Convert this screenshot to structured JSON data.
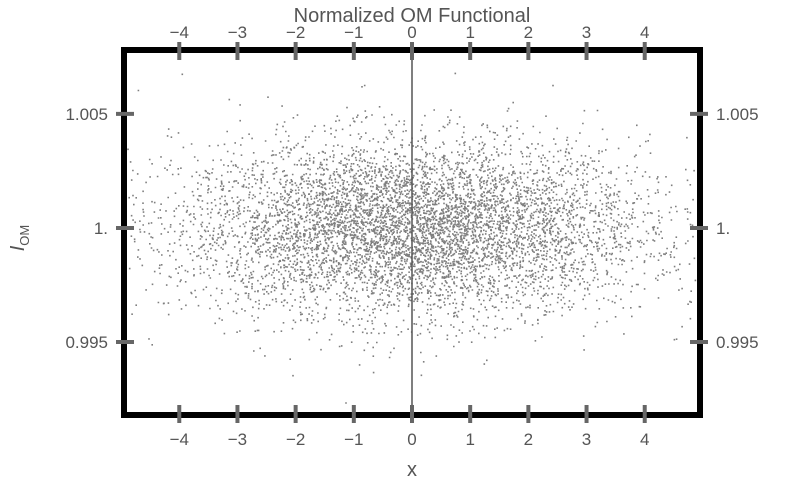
{
  "chart_data": {
    "type": "scatter",
    "title": "Normalized OM Functional",
    "xlabel": "x",
    "ylabel_main": "I",
    "ylabel_sub": "OM",
    "xlim": [
      -4.95,
      4.95
    ],
    "ylim": [
      0.9918,
      1.0078
    ],
    "x_ticks": [
      -4,
      -3,
      -2,
      -1,
      0,
      1,
      2,
      3,
      4
    ],
    "x_tick_labels": [
      "−4",
      "−3",
      "−2",
      "−1",
      "0",
      "1",
      "2",
      "3",
      "4"
    ],
    "y_ticks": [
      0.995,
      1.0,
      1.005
    ],
    "y_tick_labels": [
      "0.995",
      "1.",
      "1.005"
    ],
    "ticks_mirrored": true,
    "vertical_reference_line_x": 0,
    "cloud": {
      "description_values": {
        "x_center": 0.0,
        "y_center": 1.0,
        "x_extent": [
          -4.9,
          4.9
        ],
        "y_extent": [
          0.9922,
          1.0075
        ],
        "x_spread_sd": 2.0,
        "y_spread_sd": 0.0019
      }
    },
    "colors": {
      "points": "#7f7f7f",
      "frame": "#000000",
      "ticks": "#666666",
      "text": "#555555",
      "zero_line": "#555555"
    }
  }
}
